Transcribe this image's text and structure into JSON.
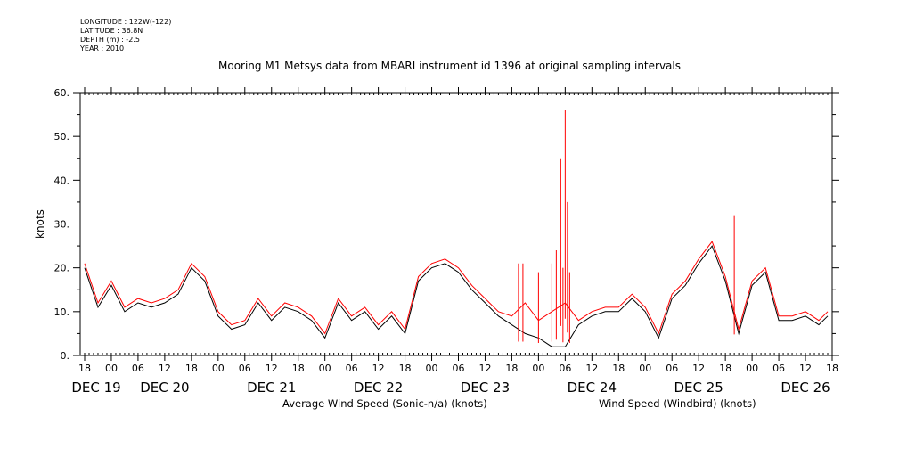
{
  "meta": {
    "longitude": "LONGITUDE : 122W(-122)",
    "latitude": "LATITUDE : 36.8N",
    "depth": "DEPTH (m) : -2.5",
    "year": "YEAR : 2010"
  },
  "colors": {
    "series_average": "#000000",
    "series_windbird": "#ff0000",
    "axes": "#000000"
  },
  "chart_data": {
    "type": "line",
    "title": "Mooring M1 Metsys data from MBARI instrument id 1396 at original sampling intervals",
    "ylabel": "knots",
    "xlabel": "",
    "ylim": [
      0,
      60
    ],
    "xlim": [
      "2010-12-19T17:00",
      "2010-12-26T18:00"
    ],
    "yticks": [
      "0.",
      "10.",
      "20.",
      "30.",
      "40.",
      "50.",
      "60."
    ],
    "xticks_hours": [
      "18",
      "00",
      "06",
      "12",
      "18",
      "00",
      "06",
      "12",
      "18",
      "00",
      "06",
      "12",
      "18",
      "00",
      "06",
      "12",
      "18",
      "00",
      "06",
      "12",
      "18",
      "00",
      "06",
      "12",
      "18",
      "00",
      "06",
      "12",
      "18"
    ],
    "xticks_dates": [
      "DEC 19",
      "DEC 20",
      "DEC 21",
      "DEC 22",
      "DEC 23",
      "DEC 24",
      "DEC 25",
      "DEC 26"
    ],
    "legend": [
      "Average Wind Speed (Sonic-n/a) (knots)",
      "Wind Speed (Windbird) (knots)"
    ],
    "grid": false,
    "series": [
      {
        "name": "Average Wind Speed (Sonic-n/a) (knots)",
        "color": "#000000",
        "x": [
          "2010-12-19T18:00",
          "2010-12-19T21:00",
          "2010-12-20T00:00",
          "2010-12-20T03:00",
          "2010-12-20T06:00",
          "2010-12-20T09:00",
          "2010-12-20T12:00",
          "2010-12-20T15:00",
          "2010-12-20T18:00",
          "2010-12-20T21:00",
          "2010-12-21T00:00",
          "2010-12-21T03:00",
          "2010-12-21T06:00",
          "2010-12-21T09:00",
          "2010-12-21T12:00",
          "2010-12-21T15:00",
          "2010-12-21T18:00",
          "2010-12-21T21:00",
          "2010-12-22T00:00",
          "2010-12-22T03:00",
          "2010-12-22T06:00",
          "2010-12-22T09:00",
          "2010-12-22T12:00",
          "2010-12-22T15:00",
          "2010-12-22T18:00",
          "2010-12-22T21:00",
          "2010-12-23T00:00",
          "2010-12-23T03:00",
          "2010-12-23T06:00",
          "2010-12-23T09:00",
          "2010-12-23T12:00",
          "2010-12-23T15:00",
          "2010-12-23T18:00",
          "2010-12-23T21:00",
          "2010-12-24T00:00",
          "2010-12-24T03:00",
          "2010-12-24T06:00",
          "2010-12-24T09:00",
          "2010-12-24T12:00",
          "2010-12-24T15:00",
          "2010-12-24T18:00",
          "2010-12-24T21:00",
          "2010-12-25T00:00",
          "2010-12-25T03:00",
          "2010-12-25T06:00",
          "2010-12-25T09:00",
          "2010-12-25T12:00",
          "2010-12-25T15:00",
          "2010-12-25T18:00",
          "2010-12-25T21:00",
          "2010-12-26T00:00",
          "2010-12-26T03:00",
          "2010-12-26T06:00",
          "2010-12-26T09:00",
          "2010-12-26T12:00",
          "2010-12-26T15:00",
          "2010-12-26T17:00"
        ],
        "values": [
          20,
          11,
          16,
          10,
          12,
          11,
          12,
          14,
          20,
          17,
          9,
          6,
          7,
          12,
          8,
          11,
          10,
          8,
          4,
          12,
          8,
          10,
          6,
          9,
          5,
          17,
          20,
          21,
          19,
          15,
          12,
          9,
          7,
          5,
          4,
          2,
          2,
          7,
          9,
          10,
          10,
          13,
          10,
          4,
          13,
          16,
          21,
          25,
          17,
          5,
          16,
          19,
          8,
          8,
          9,
          7,
          9
        ]
      },
      {
        "name": "Wind Speed (Windbird) (knots)",
        "color": "#ff0000",
        "x": [
          "2010-12-19T18:00",
          "2010-12-19T21:00",
          "2010-12-20T00:00",
          "2010-12-20T03:00",
          "2010-12-20T06:00",
          "2010-12-20T09:00",
          "2010-12-20T12:00",
          "2010-12-20T15:00",
          "2010-12-20T18:00",
          "2010-12-20T21:00",
          "2010-12-21T00:00",
          "2010-12-21T03:00",
          "2010-12-21T06:00",
          "2010-12-21T09:00",
          "2010-12-21T12:00",
          "2010-12-21T15:00",
          "2010-12-21T18:00",
          "2010-12-21T21:00",
          "2010-12-22T00:00",
          "2010-12-22T03:00",
          "2010-12-22T06:00",
          "2010-12-22T09:00",
          "2010-12-22T12:00",
          "2010-12-22T15:00",
          "2010-12-22T18:00",
          "2010-12-22T21:00",
          "2010-12-23T00:00",
          "2010-12-23T03:00",
          "2010-12-23T06:00",
          "2010-12-23T09:00",
          "2010-12-23T12:00",
          "2010-12-23T15:00",
          "2010-12-23T18:00",
          "2010-12-23T21:00",
          "2010-12-24T00:00",
          "2010-12-24T03:00",
          "2010-12-24T06:00",
          "2010-12-24T09:00",
          "2010-12-24T12:00",
          "2010-12-24T15:00",
          "2010-12-24T18:00",
          "2010-12-24T21:00",
          "2010-12-25T00:00",
          "2010-12-25T03:00",
          "2010-12-25T06:00",
          "2010-12-25T09:00",
          "2010-12-25T12:00",
          "2010-12-25T15:00",
          "2010-12-25T18:00",
          "2010-12-25T21:00",
          "2010-12-26T00:00",
          "2010-12-26T03:00",
          "2010-12-26T06:00",
          "2010-12-26T09:00",
          "2010-12-26T12:00",
          "2010-12-26T15:00",
          "2010-12-26T17:00"
        ],
        "values": [
          21,
          12,
          17,
          11,
          13,
          12,
          13,
          15,
          21,
          18,
          10,
          7,
          8,
          13,
          9,
          12,
          11,
          9,
          5,
          13,
          9,
          11,
          7,
          10,
          6,
          18,
          21,
          22,
          20,
          16,
          13,
          10,
          9,
          12,
          8,
          10,
          12,
          8,
          10,
          11,
          11,
          14,
          11,
          5,
          14,
          17,
          22,
          26,
          18,
          6,
          17,
          20,
          9,
          9,
          10,
          8,
          10
        ]
      },
      {
        "name": "",
        "type": "spikes",
        "color": "#ff0000",
        "x": [
          "2010-12-23T19:30",
          "2010-12-23T20:30",
          "2010-12-24T00:00",
          "2010-12-24T03:00",
          "2010-12-24T04:00",
          "2010-12-24T05:00",
          "2010-12-24T05:30",
          "2010-12-24T06:00",
          "2010-12-24T06:30",
          "2010-12-24T07:00",
          "2010-12-25T20:00"
        ],
        "values": [
          21,
          21,
          19,
          21,
          24,
          45,
          20,
          56,
          35,
          19,
          32
        ]
      }
    ]
  },
  "ui": {
    "hour_label_y": "hour"
  }
}
